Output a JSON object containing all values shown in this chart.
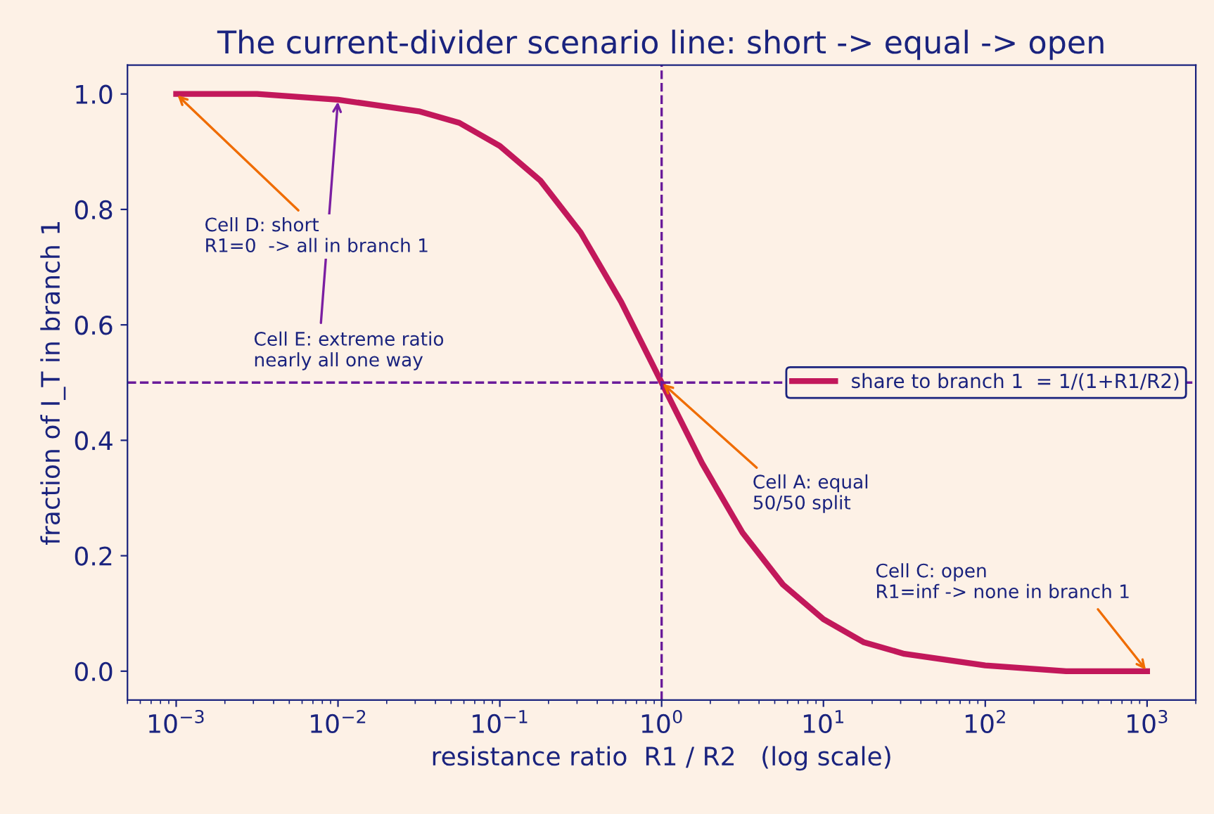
{
  "chart_data": {
    "type": "line",
    "title": "The current-divider scenario line: short -> equal -> open",
    "xlabel": "resistance ratio  R1 / R2   (log scale)",
    "ylabel": "fraction of I_T in branch 1",
    "x": [
      0.001,
      0.00316,
      0.01,
      0.0316,
      0.0562,
      0.1,
      0.178,
      0.316,
      0.562,
      1,
      1.78,
      3.16,
      5.62,
      10,
      17.8,
      31.6,
      100,
      316,
      1000
    ],
    "series": [
      {
        "name": "share to branch 1  = 1/(1+R1/R2)",
        "color": "#c2185b",
        "values": [
          1.0,
          1.0,
          0.99,
          0.97,
          0.95,
          0.91,
          0.85,
          0.76,
          0.64,
          0.5,
          0.36,
          0.24,
          0.15,
          0.09,
          0.05,
          0.03,
          0.01,
          0.0,
          0.0
        ]
      }
    ],
    "log": "x",
    "xlim": [
      0.0005,
      2000
    ],
    "xticks": [
      {
        "value": 0.001,
        "label": "10$^{−3}$"
      },
      {
        "value": 0.01,
        "label": "10$^{−2}$"
      },
      {
        "value": 0.1,
        "label": "10$^{−1}$"
      },
      {
        "value": 1,
        "label": "10$^{0}$"
      },
      {
        "value": 10,
        "label": "10$^{1}$"
      },
      {
        "value": 100,
        "label": "10$^{2}$"
      },
      {
        "value": 1000,
        "label": "10$^{3}$"
      }
    ],
    "ylim": [
      -0.05,
      1.05
    ],
    "yticks": [
      {
        "value": 0,
        "label": "0.0"
      },
      {
        "value": 0.2,
        "label": "0.2"
      },
      {
        "value": 0.4,
        "label": "0.4"
      },
      {
        "value": 0.6,
        "label": "0.6"
      },
      {
        "value": 0.8,
        "label": "0.8"
      },
      {
        "value": 1,
        "label": "1.0"
      }
    ],
    "ref_lines": [
      {
        "axis": "x",
        "value": 1,
        "color": "#6a1b9a",
        "line_style": "dashed"
      },
      {
        "axis": "y",
        "value": 0.5,
        "color": "#6a1b9a",
        "line_style": "dashed"
      }
    ],
    "annotations": [
      {
        "text": "Cell D: short\nR1=0  -> all in branch 1",
        "x": 0.001,
        "y": 1.0
      },
      {
        "text": "Cell E: extreme ratio\nnearly all one way",
        "x": 0.01,
        "y": 0.99
      },
      {
        "text": "Cell A: equal\n50/50 split",
        "x": 1,
        "y": 0.5
      },
      {
        "text": "Cell C: open\nR1=inf -> none in branch 1",
        "x": 1000,
        "y": 0.0
      }
    ],
    "legend": "right",
    "grid": false,
    "marker": "none",
    "line_style": "solid"
  }
}
